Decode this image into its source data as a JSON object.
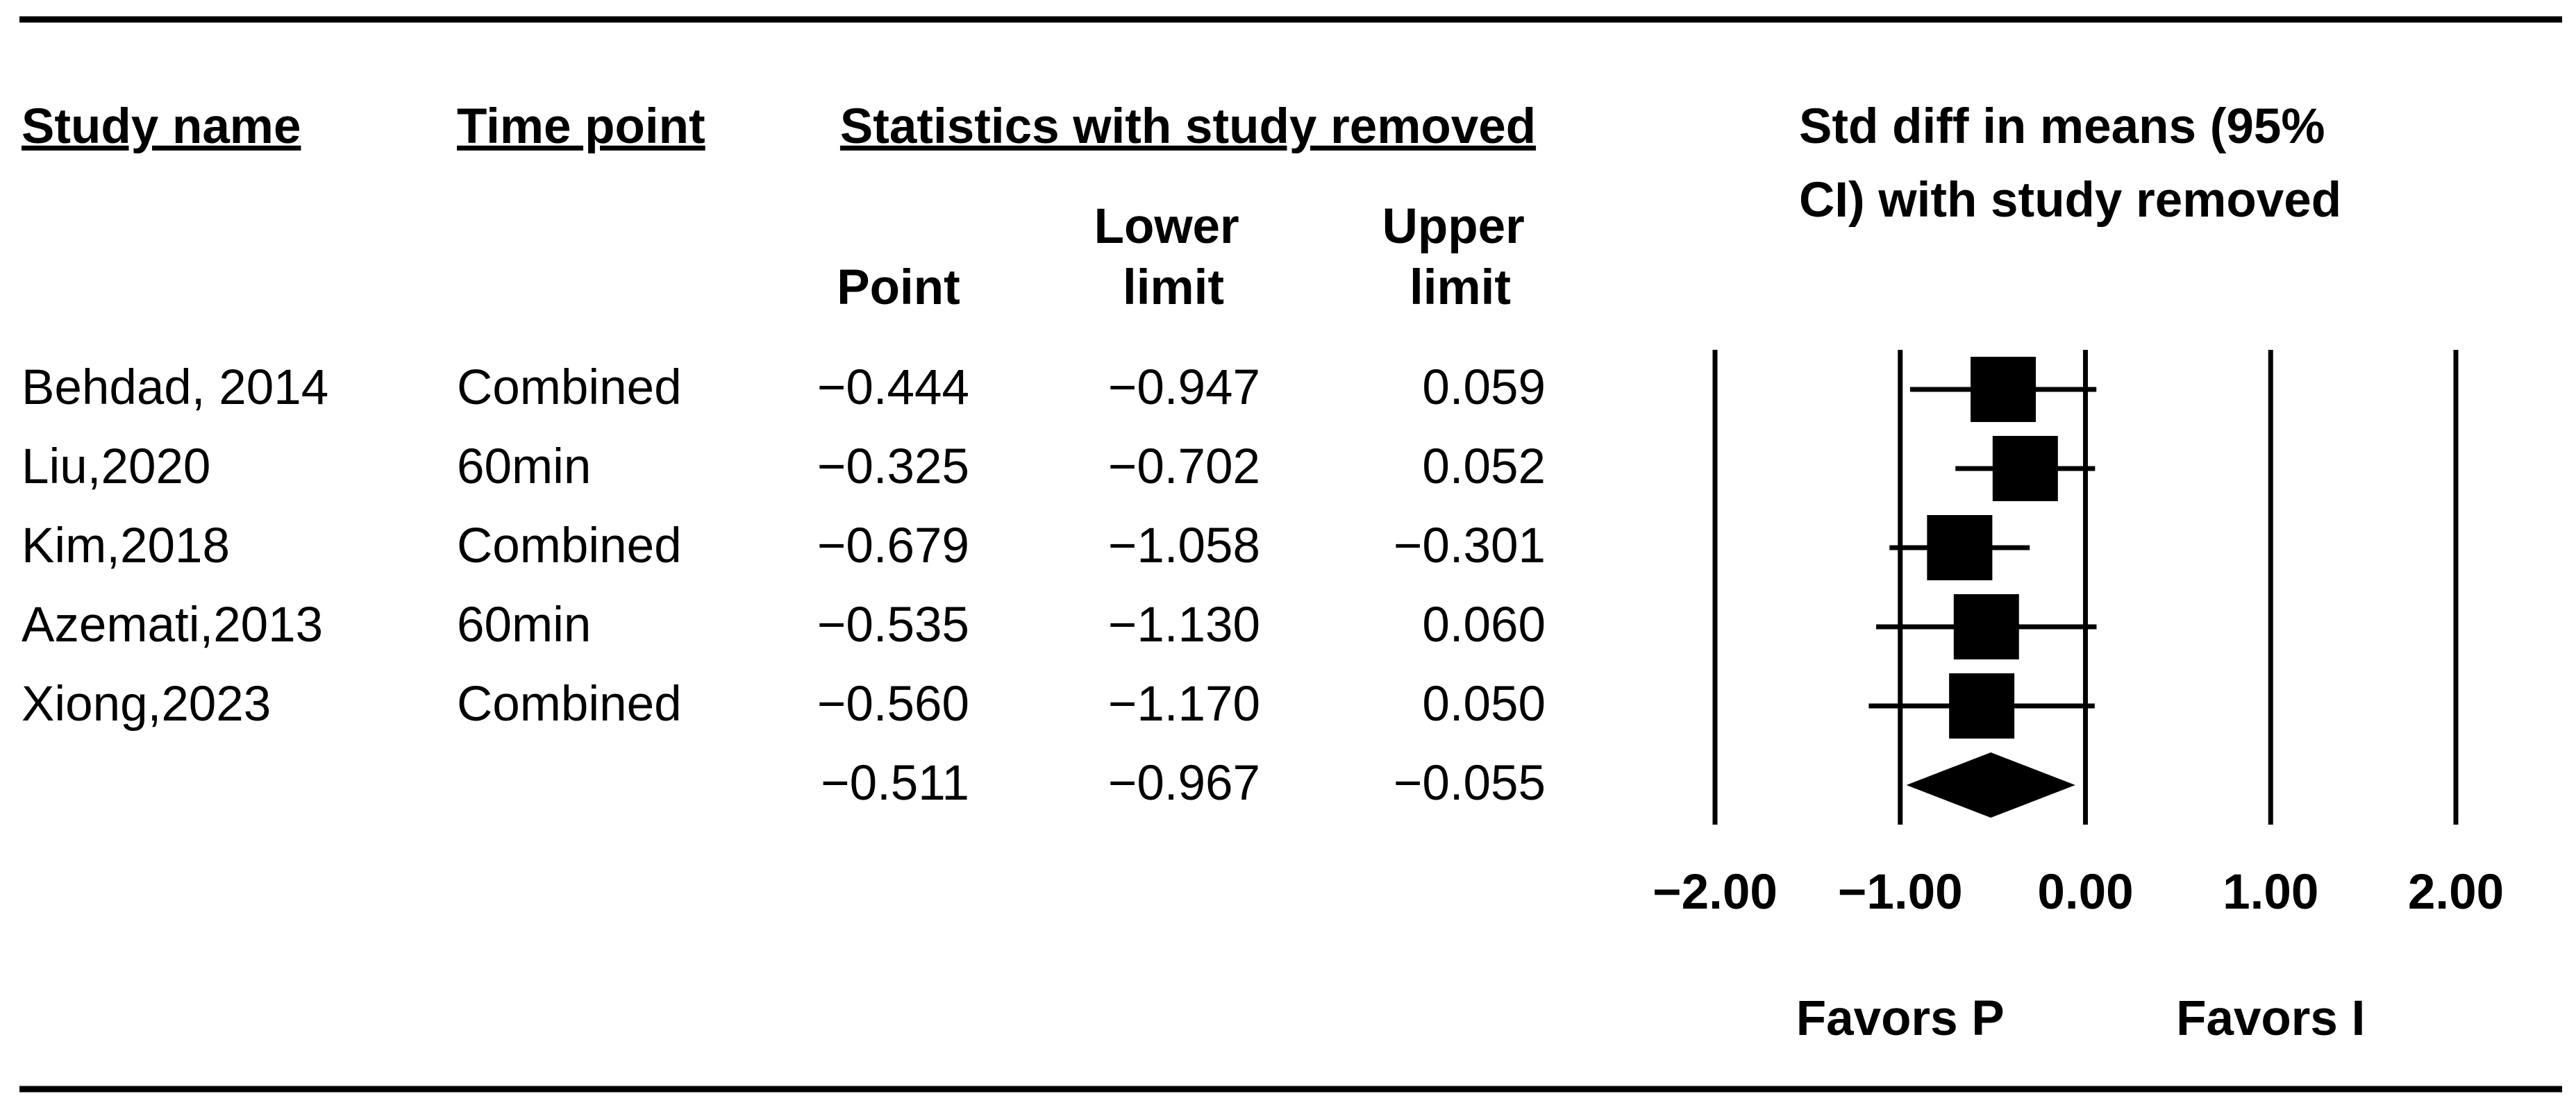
{
  "chart_data": {
    "type": "forest",
    "headers": {
      "study": "Study name",
      "time": "Time point",
      "stats": "Statistics with study removed",
      "plot": "Std diff in means (95% CI) with study removed"
    },
    "categories": [
      "Behdad, 2014",
      "Liu,2020",
      "Kim,2018",
      "Azemati,2013",
      "Xiong,2023",
      null
    ],
    "time_points": [
      "Combined",
      "60min",
      "Combined",
      "60min",
      "Combined",
      null
    ],
    "series": [
      {
        "name": "Point",
        "values": [
          -0.444,
          -0.325,
          -0.679,
          -0.535,
          -0.56,
          -0.511
        ],
        "value_labels": [
          "−0.444",
          "−0.325",
          "−0.679",
          "−0.535",
          "−0.560",
          "−0.511"
        ]
      },
      {
        "name": "Lower limit",
        "values": [
          -0.947,
          -0.702,
          -1.058,
          -1.13,
          -1.17,
          -0.967
        ],
        "value_labels": [
          "−0.947",
          "−0.702",
          "−1.058",
          "−1.130",
          "−1.170",
          "−0.967"
        ]
      },
      {
        "name": "Upper limit",
        "values": [
          0.059,
          0.052,
          -0.301,
          0.06,
          0.05,
          -0.055
        ],
        "value_labels": [
          "0.059",
          "0.052",
          "−0.301",
          "0.060",
          "0.050",
          "−0.055"
        ]
      }
    ],
    "color": "#000000",
    "xlim": [
      -2,
      2
    ],
    "xticks": [
      {
        "value": -2,
        "label": "−2.00"
      },
      {
        "value": -1,
        "label": "−1.00"
      },
      {
        "value": 0,
        "label": "0.00"
      },
      {
        "value": 1,
        "label": "1.00"
      },
      {
        "value": 2,
        "label": "2.00"
      }
    ],
    "annotations": [
      {
        "x": -1,
        "text": "Favors P"
      },
      {
        "x": 1,
        "text": "Favors I"
      }
    ]
  }
}
